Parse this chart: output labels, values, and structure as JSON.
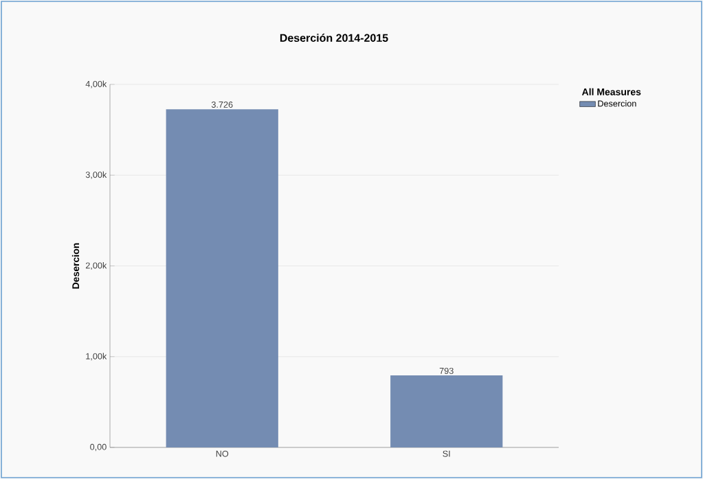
{
  "chart_data": {
    "type": "bar",
    "title": "Deserción 2014-2015",
    "ylabel": "Desercion",
    "legend_title": "All Measures",
    "categories": [
      "NO",
      "SI"
    ],
    "series": [
      {
        "name": "Desercion",
        "color": "#748cb2",
        "values": [
          3726,
          793
        ],
        "value_labels": [
          "3.726",
          "793"
        ]
      }
    ],
    "ylim": [
      0,
      4000
    ],
    "yticks": [
      {
        "value": 0,
        "label": "0,00"
      },
      {
        "value": 1000,
        "label": "1,00k"
      },
      {
        "value": 2000,
        "label": "2,00k"
      },
      {
        "value": 3000,
        "label": "3,00k"
      },
      {
        "value": 4000,
        "label": "4,00k"
      }
    ],
    "grid": "y",
    "legend": "top right"
  }
}
